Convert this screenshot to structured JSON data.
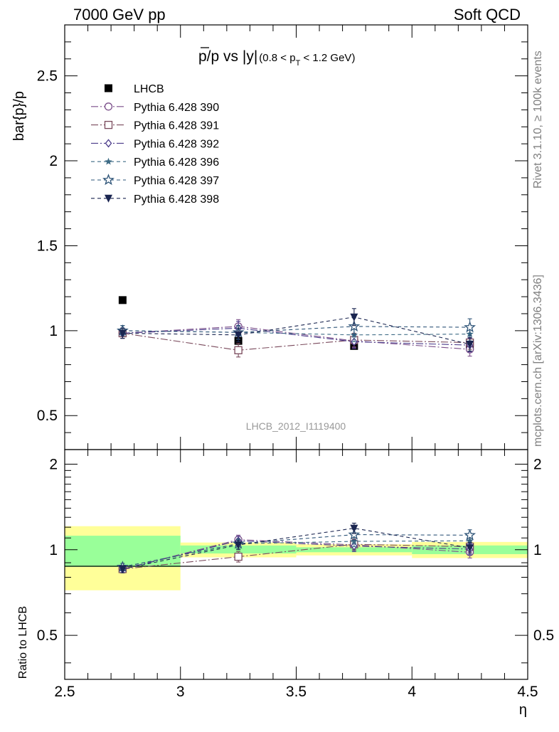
{
  "header": {
    "left": "7000 GeV pp",
    "right": "Soft QCD"
  },
  "side_text": {
    "rivet": "Rivet 3.1.10, ≥ 100k events",
    "mcplots": "mcplots.cern.ch [arXiv:1306.3436]"
  },
  "analysis_label": "LHCB_2012_I1119400",
  "colors": {
    "lhcb": "#000000",
    "band_inner": "#99ff99",
    "band_outer": "#ffff99"
  },
  "chart_data": [
    {
      "panel": "main",
      "type": "scatter",
      "title": "p̅/p vs |y|",
      "title_main": "p/p vs |y|",
      "title_sub": "(0.8 < p",
      "title_subscript": "T",
      "title_sub_end": " < 1.2 GeV)",
      "ylabel": "bar{p}/p",
      "xlim": [
        2.5,
        4.5
      ],
      "ylim": [
        0.3,
        2.8
      ],
      "yticks": [
        0.5,
        1,
        1.5,
        2,
        2.5
      ],
      "ytick_labels": [
        "0.5",
        "1",
        "1.5",
        "2",
        "2.5"
      ],
      "x": [
        2.75,
        3.25,
        3.75,
        4.25
      ],
      "legend_position": "top-left",
      "series": [
        {
          "name": "LHCB",
          "values": [
            1.18,
            0.94,
            0.91,
            0.91
          ],
          "errors": [
            0.0,
            0.0,
            0.0,
            0.0
          ],
          "marker": "square-filled",
          "color": "#000000",
          "dash": "none"
        },
        {
          "name": "Pythia 6.428 390",
          "values": [
            0.985,
            1.025,
            0.94,
            0.89
          ],
          "errors": [
            0.03,
            0.04,
            0.04,
            0.04
          ],
          "marker": "circle-open",
          "color": "#7b4f8a",
          "dash": "10,3,2,3"
        },
        {
          "name": "Pythia 6.428 391",
          "values": [
            0.985,
            0.885,
            0.945,
            0.93
          ],
          "errors": [
            0.03,
            0.04,
            0.04,
            0.04
          ],
          "marker": "square-open",
          "color": "#7a4a5c",
          "dash": "10,3,2,3"
        },
        {
          "name": "Pythia 6.428 392",
          "values": [
            0.985,
            1.015,
            0.935,
            0.915
          ],
          "errors": [
            0.03,
            0.04,
            0.04,
            0.04
          ],
          "marker": "diamond-open",
          "color": "#4a3a8a",
          "dash": "10,3,2,3"
        },
        {
          "name": "Pythia 6.428 396",
          "values": [
            1.0,
            0.99,
            0.975,
            0.98
          ],
          "errors": [
            0.03,
            0.04,
            0.04,
            0.04
          ],
          "marker": "star-filled",
          "color": "#3d6b85",
          "dash": "5,4"
        },
        {
          "name": "Pythia 6.428 397",
          "values": [
            1.0,
            0.99,
            1.025,
            1.02
          ],
          "errors": [
            0.03,
            0.04,
            0.05,
            0.05
          ],
          "marker": "star-open",
          "color": "#2e5478",
          "dash": "5,4"
        },
        {
          "name": "Pythia 6.428 398",
          "values": [
            0.985,
            0.975,
            1.08,
            0.92
          ],
          "errors": [
            0.03,
            0.04,
            0.05,
            0.04
          ],
          "marker": "triangle-down-filled",
          "color": "#1a2550",
          "dash": "5,4"
        }
      ]
    },
    {
      "panel": "ratio",
      "type": "scatter",
      "ylabel": "Ratio to LHCB",
      "xlabel": "η",
      "xlim": [
        2.5,
        4.5
      ],
      "ylim": [
        0.35,
        2.25
      ],
      "xticks": [
        2.5,
        3,
        3.5,
        4,
        4.5
      ],
      "xtick_labels": [
        "2.5",
        "3",
        "3.5",
        "4",
        "4.5"
      ],
      "yticks": [
        0.5,
        1,
        2
      ],
      "ytick_labels": [
        "0.5",
        "1",
        "2"
      ],
      "reference_line": 1,
      "bands": [
        {
          "x": [
            2.5,
            3.0
          ],
          "inner": [
            0.87,
            1.12
          ],
          "outer": [
            0.72,
            1.21
          ]
        },
        {
          "x": [
            3.0,
            3.5
          ],
          "inner": [
            0.97,
            1.035
          ],
          "outer": [
            0.94,
            1.06
          ]
        },
        {
          "x": [
            3.5,
            4.0
          ],
          "inner": [
            0.98,
            1.02
          ],
          "outer": [
            0.955,
            1.045
          ]
        },
        {
          "x": [
            4.0,
            4.5
          ],
          "inner": [
            0.965,
            1.035
          ],
          "outer": [
            0.935,
            1.065
          ]
        }
      ],
      "x": [
        2.75,
        3.25,
        3.75,
        4.25
      ],
      "series": [
        {
          "name": "Pythia 6.428 390",
          "values": [
            0.855,
            1.085,
            1.04,
            0.98
          ],
          "errors": [
            0.025,
            0.04,
            0.045,
            0.045
          ]
        },
        {
          "name": "Pythia 6.428 391",
          "values": [
            0.855,
            0.945,
            1.045,
            1.025
          ],
          "errors": [
            0.025,
            0.04,
            0.045,
            0.045
          ]
        },
        {
          "name": "Pythia 6.428 392",
          "values": [
            0.855,
            1.075,
            1.03,
            1.005
          ],
          "errors": [
            0.025,
            0.04,
            0.045,
            0.045
          ]
        },
        {
          "name": "Pythia 6.428 396",
          "values": [
            0.87,
            1.05,
            1.07,
            1.075
          ],
          "errors": [
            0.025,
            0.04,
            0.045,
            0.045
          ]
        },
        {
          "name": "Pythia 6.428 397",
          "values": [
            0.87,
            1.05,
            1.13,
            1.125
          ],
          "errors": [
            0.025,
            0.04,
            0.05,
            0.05
          ]
        },
        {
          "name": "Pythia 6.428 398",
          "values": [
            0.855,
            1.04,
            1.19,
            1.015
          ],
          "errors": [
            0.025,
            0.04,
            0.05,
            0.045
          ]
        }
      ]
    }
  ]
}
